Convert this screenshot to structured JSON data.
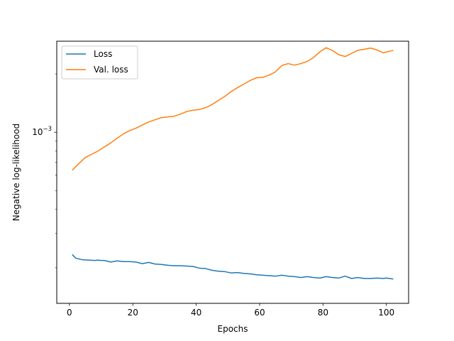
{
  "chart_data": {
    "type": "line",
    "xlabel": "Epochs",
    "ylabel": "Negative log-likelihood",
    "xlim": [
      -4,
      107
    ],
    "ylim": [
      0.000131,
      0.00295
    ],
    "y_scale": "log",
    "x_ticks": [
      0,
      20,
      40,
      60,
      80,
      100
    ],
    "y_ticks": [
      {
        "value": 0.001,
        "base": "10",
        "exponent": "−3"
      }
    ],
    "grid": false,
    "legend_position": "top-left",
    "series": [
      {
        "name": "Loss",
        "color": "#1f77b4",
        "x": [
          1,
          2,
          4,
          6,
          8,
          9,
          10,
          11,
          13,
          15,
          17,
          19,
          21,
          23,
          25,
          27,
          29,
          31,
          33,
          35,
          37,
          39,
          41,
          43,
          45,
          47,
          49,
          51,
          53,
          55,
          57,
          59,
          61,
          63,
          65,
          67,
          69,
          71,
          73,
          75,
          77,
          79,
          81,
          83,
          85,
          87,
          89,
          91,
          93,
          95,
          97,
          99,
          100,
          102
        ],
        "values": [
          0.000233,
          0.000224,
          0.00022,
          0.000219,
          0.000218,
          0.000219,
          0.000218,
          0.000218,
          0.000214,
          0.000217,
          0.000215,
          0.000215,
          0.000214,
          0.00021,
          0.000213,
          0.000209,
          0.000208,
          0.000206,
          0.000205,
          0.000205,
          0.000204,
          0.000203,
          0.000199,
          0.000198,
          0.000194,
          0.000192,
          0.000191,
          0.000188,
          0.000189,
          0.000187,
          0.000186,
          0.000184,
          0.000183,
          0.000182,
          0.000181,
          0.000183,
          0.000181,
          0.00018,
          0.000178,
          0.00018,
          0.000178,
          0.000177,
          0.00018,
          0.000178,
          0.000177,
          0.000181,
          0.000176,
          0.000178,
          0.000176,
          0.000176,
          0.000177,
          0.000176,
          0.000177,
          0.000175
        ]
      },
      {
        "name": "Val. loss",
        "color": "#ff7f0e",
        "x": [
          1,
          3,
          5,
          7,
          9,
          11,
          13,
          15,
          17,
          19,
          21,
          23,
          25,
          27,
          29,
          31,
          33,
          35,
          37,
          39,
          41,
          43,
          45,
          47,
          49,
          51,
          53,
          55,
          57,
          59,
          61,
          63,
          65,
          67,
          69,
          71,
          73,
          75,
          77,
          79,
          81,
          83,
          85,
          87,
          89,
          91,
          93,
          95,
          97,
          99,
          101,
          102
        ],
        "values": [
          0.00064,
          0.00069,
          0.00074,
          0.00077,
          0.0008,
          0.00084,
          0.00088,
          0.00093,
          0.00098,
          0.00102,
          0.00105,
          0.00109,
          0.00113,
          0.00116,
          0.00119,
          0.0012,
          0.00121,
          0.00124,
          0.00128,
          0.0013,
          0.00131,
          0.00134,
          0.00139,
          0.00146,
          0.00153,
          0.00162,
          0.0017,
          0.00177,
          0.00185,
          0.00191,
          0.00192,
          0.00197,
          0.00205,
          0.00221,
          0.00226,
          0.00222,
          0.00226,
          0.00232,
          0.00243,
          0.0026,
          0.00273,
          0.00264,
          0.00251,
          0.00246,
          0.00255,
          0.00265,
          0.00268,
          0.00272,
          0.00266,
          0.00257,
          0.00262,
          0.00264
        ]
      }
    ]
  }
}
